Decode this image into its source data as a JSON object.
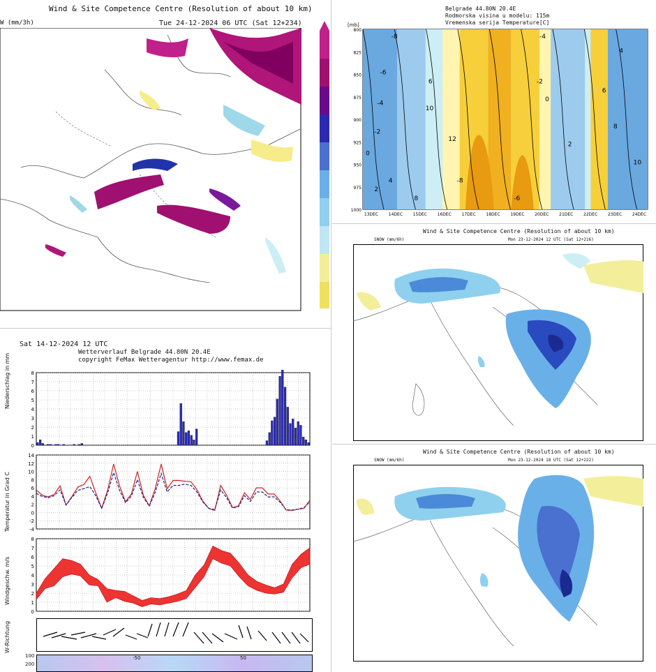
{
  "map_tl": {
    "title": "Wind & Site Competence Centre (Resolution of about 10 km)",
    "var": "W (mm/3h)",
    "valid": "Tue 24-12-2024 06 UTC (Sat 12+234)"
  },
  "meteogram": {
    "run": "Sat 14-12-2024 12 UTC",
    "header": "Wetterverlauf Belgrade   44.80N 20.4E",
    "copyright": "copyright FeMax Wetteragentur http://www.femax.de",
    "precip_label": "Niederschlag in mm",
    "temp_label": "Temperatur in Grad C",
    "wind_label": "Windgeschw. m/s",
    "dir_label": "W-Richtung",
    "bottom_tick_1": "100",
    "bottom_tick_2": "200",
    "bottom_tick_3": "50",
    "bottom_tick_4": "-50"
  },
  "cross_section": {
    "line1": "Belgrade   44.80N 20.4E",
    "line2": "Rodmorska visina u modelu: 115m",
    "line3": "Vremenska serija Temperature[C]",
    "unit": "[mb]"
  },
  "map_mr": {
    "title": "Wind & Site Competence Centre (Resolution of about 10 km)",
    "var": "SNOW (mm/6h)",
    "valid": "Mon 23-12-2024 12 UTC (Sat 12+216)"
  },
  "map_br": {
    "title": "Wind & Site Competence Centre (Resolution of about 10 km)",
    "var": "SNOW (mm/6h)",
    "valid": "Mon 23-12-2024 18 UTC (Sat 12+222)"
  },
  "chart_data": [
    {
      "type": "bar",
      "title": "Niederschlag in mm",
      "ylabel": "Niederschlag in mm",
      "ylim": [
        0,
        8
      ],
      "y_ticks": [
        "0",
        "1",
        "2",
        "3",
        "4",
        "5",
        "6",
        "7",
        "8"
      ],
      "values": [
        0.3,
        0.6,
        0.2,
        0,
        0.1,
        0.1,
        0,
        0.1,
        0.1,
        0,
        0.1,
        0,
        0,
        0,
        0.1,
        0,
        0.1,
        0.2,
        0,
        0,
        0,
        0,
        0,
        0,
        0,
        0,
        0,
        0,
        0,
        0,
        0,
        0,
        0,
        0,
        0,
        0,
        0,
        0,
        0,
        0,
        0,
        0,
        0,
        0,
        0,
        0,
        0,
        0,
        0,
        0,
        0,
        0,
        0,
        0,
        1.5,
        4.6,
        2.6,
        1.4,
        1.6,
        1.1,
        0.6,
        1.8,
        0,
        0,
        0,
        0,
        0,
        0,
        0,
        0,
        0,
        0,
        0,
        0,
        0,
        0,
        0,
        0,
        0,
        0,
        0,
        0,
        0,
        0,
        0,
        0,
        0,
        0,
        0.5,
        1.4,
        2.7,
        3.1,
        5.1,
        7.6,
        8.5,
        6.4,
        4.2,
        2.4,
        2.9,
        1.9,
        2.6,
        2.2,
        0.9,
        0.6,
        0.3
      ],
      "color": "#2c2cb8"
    },
    {
      "type": "line",
      "title": "Temperatur in Grad C",
      "ylabel": "Temperatur in Grad C",
      "ylim": [
        -4,
        14
      ],
      "y_ticks": [
        "-4",
        "-2",
        "0",
        "2",
        "4",
        "6",
        "8",
        "10",
        "12",
        "14"
      ],
      "series": [
        {
          "name": "Temperatur",
          "color": "#cc2222",
          "values": [
            5.5,
            4.2,
            3.8,
            4.4,
            6.5,
            1.8,
            3.9,
            6.2,
            6.8,
            8.8,
            4.8,
            1.0,
            5.5,
            11.8,
            6.5,
            2.6,
            4.5,
            10.0,
            4.2,
            1.6,
            5.8,
            11.8,
            5.8,
            7.8,
            7.8,
            7.6,
            7.5,
            5.6,
            2.8,
            1.0,
            0.5,
            6.6,
            4.2,
            1.2,
            1.6,
            4.8,
            3.2,
            6.0,
            6.0,
            4.5,
            4.5,
            2.8,
            0.6,
            0.5,
            0.8,
            1.0,
            3.0
          ]
        },
        {
          "name": "Taupunkt",
          "color": "#222288",
          "values": [
            4.7,
            3.9,
            3.6,
            4.1,
            5.5,
            1.8,
            3.7,
            5.4,
            5.8,
            6.3,
            4.1,
            1.0,
            4.8,
            9.7,
            5.4,
            2.4,
            4.0,
            8.0,
            3.7,
            1.6,
            4.9,
            9.5,
            5.0,
            6.6,
            6.6,
            6.9,
            6.6,
            5.0,
            2.6,
            1.0,
            0.7,
            5.5,
            3.6,
            1.1,
            1.4,
            4.1,
            2.7,
            5.0,
            5.0,
            3.8,
            3.8,
            2.5,
            0.7,
            0.6,
            0.8,
            1.2,
            2.6
          ]
        }
      ]
    },
    {
      "type": "area",
      "title": "Windgeschw. m/s",
      "ylabel": "Windgeschw. m/s",
      "ylim": [
        0,
        8
      ],
      "y_ticks": [
        "0",
        "1",
        "2",
        "3",
        "4",
        "5",
        "6",
        "7",
        "8"
      ],
      "series": [
        {
          "name": "min",
          "values": [
            1.3,
            2.5,
            2.8,
            3.8,
            4.1,
            3.9,
            2.9,
            2.8,
            1.0,
            1.5,
            1.1,
            0.9,
            0.5,
            0.8,
            0.7,
            0.9,
            1.1,
            1.4,
            2.6,
            3.8,
            5.8,
            5.3,
            5.0,
            3.8,
            2.8,
            2.3,
            2.0,
            1.9,
            2.1,
            3.7,
            4.8,
            5.2
          ]
        },
        {
          "name": "max",
          "values": [
            2.0,
            3.6,
            4.7,
            5.8,
            5.6,
            5.2,
            4.0,
            3.5,
            2.5,
            2.3,
            2.2,
            1.7,
            1.2,
            1.5,
            1.4,
            1.6,
            1.9,
            2.3,
            4.0,
            5.1,
            7.2,
            6.7,
            6.4,
            5.3,
            4.0,
            3.3,
            2.9,
            2.6,
            3.0,
            5.2,
            6.3,
            7.0
          ]
        }
      ],
      "color": "#ee3333"
    },
    {
      "type": "heatmap",
      "title": "Vremenska serija Temperature[C]",
      "ylabel": "[mb]",
      "y_ticks": [
        "800",
        "825",
        "850",
        "875",
        "900",
        "925",
        "950",
        "975",
        "1000"
      ],
      "x_ticks": [
        "13DEC",
        "14DEC",
        "15DEC",
        "16DEC",
        "17DEC",
        "18DEC",
        "19DEC",
        "20DEC",
        "21DEC",
        "22DEC",
        "23DEC",
        "24DEC"
      ],
      "contour_labels": [
        "-8",
        "-6",
        "-4",
        "-2",
        "0",
        "2",
        "4",
        "6",
        "8",
        "10",
        "12"
      ]
    }
  ]
}
